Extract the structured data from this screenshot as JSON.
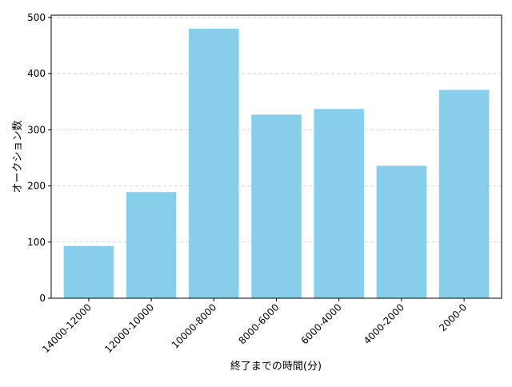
{
  "chart_data": {
    "type": "bar",
    "title": "",
    "xlabel": "終了までの時間(分)",
    "ylabel": "オークション数",
    "categories": [
      "14000-12000",
      "12000-10000",
      "10000-8000",
      "8000-6000",
      "6000-4000",
      "4000-2000",
      "2000-0"
    ],
    "values": [
      93,
      189,
      480,
      327,
      337,
      236,
      371
    ],
    "ylim": [
      0,
      504
    ],
    "yticks": [
      0,
      100,
      200,
      300,
      400,
      500
    ],
    "grid": "horizontal dashed",
    "bar_color": "#87ceeb",
    "grid_color": "#c8c8c8"
  }
}
